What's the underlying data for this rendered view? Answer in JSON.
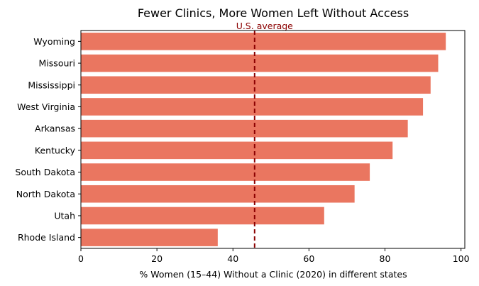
{
  "chart_data": {
    "type": "bar",
    "orientation": "horizontal",
    "title": "Fewer Clinics, More Women Left Without Access",
    "xlabel": "% Women (15–44) Without a Clinic (2020) in different states",
    "ylabel": "",
    "xlim": [
      0,
      101
    ],
    "xticks": [
      "0",
      "20",
      "40",
      "60",
      "80",
      "100"
    ],
    "categories": [
      "Wyoming",
      "Missouri",
      "Mississippi",
      "West Virginia",
      "Arkansas",
      "Kentucky",
      "South Dakota",
      "North Dakota",
      "Utah",
      "Rhode Island"
    ],
    "values": [
      96,
      94,
      92,
      90,
      86,
      82,
      76,
      72,
      64,
      36
    ],
    "bar_color": "#ea7660",
    "reference_line": {
      "label": "U.S. average",
      "value": 45.7,
      "color": "#8b0000",
      "style": "dashed"
    },
    "grid": false,
    "legend": "none"
  }
}
